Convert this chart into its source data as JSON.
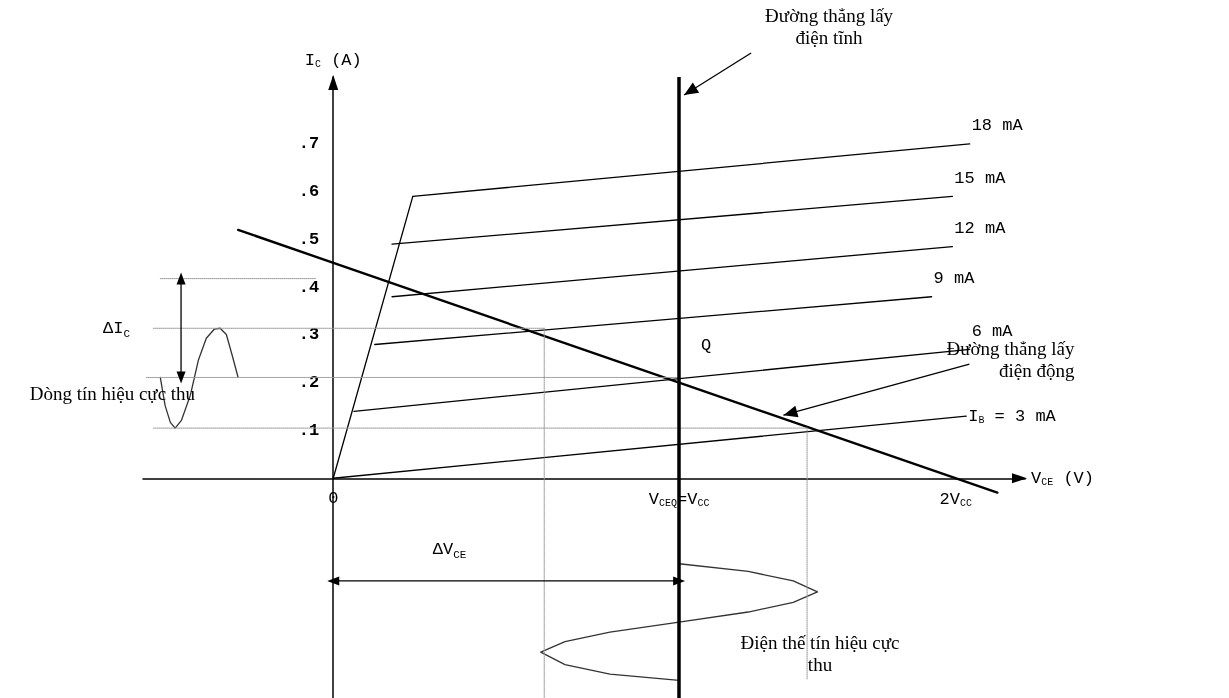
{
  "chart_data": {
    "type": "line",
    "xlabel": "V$_{CE}$ (V)",
    "ylabel": "I$_{C}$ (A)",
    "marker": "none",
    "xlim": [
      -0.55,
      2.0
    ],
    "ylim": [
      -0.46,
      0.84
    ],
    "xticks": [
      0,
      {
        "value": 1,
        "label": "V$_{CEQ}$=V$_{CC}$"
      },
      {
        "value": 1.8,
        "label": "2V$_{CC}$"
      }
    ],
    "yticks": [
      {
        "value": 0.1,
        "label": ".1"
      },
      {
        "value": 0.2,
        "label": ".2"
      },
      {
        "value": 0.3,
        "label": ".3"
      },
      {
        "value": 0.4,
        "label": ".4"
      },
      {
        "value": 0.5,
        "label": ".5"
      },
      {
        "value": 0.6,
        "label": ".6"
      },
      {
        "value": 0.7,
        "label": ".7"
      }
    ],
    "series": [
      {
        "name": "18 mA",
        "color": "#000000",
        "x": [
          0.23,
          1.84
        ],
        "values": [
          0.59,
          0.7
        ]
      },
      {
        "name": "15 mA",
        "color": "#000000",
        "x": [
          0.17,
          1.79
        ],
        "values": [
          0.49,
          0.59
        ]
      },
      {
        "name": "12 mA",
        "color": "#000000",
        "x": [
          0.17,
          1.79
        ],
        "values": [
          0.38,
          0.485
        ]
      },
      {
        "name": "9 mA",
        "color": "#000000",
        "x": [
          0.12,
          1.73
        ],
        "values": [
          0.28,
          0.38
        ]
      },
      {
        "name": "6 mA",
        "color": "#000000",
        "x": [
          0.06,
          1.84
        ],
        "values": [
          0.14,
          0.27
        ]
      },
      {
        "name": "I$_{B}$ = 3 mA",
        "color": "#000000",
        "x": [
          0,
          1.83
        ],
        "values": [
          0,
          0.13
        ]
      },
      {
        "color": "#000000",
        "x": [
          0,
          0.23
        ],
        "values": [
          0,
          0.59
        ]
      },
      {
        "color": "#000000",
        "x": [
          -0.275,
          1,
          1.92
        ],
        "values": [
          0.52,
          0.2,
          -0.03
        ]
      },
      {
        "color": "#333333",
        "x": [
          -0.5,
          -0.486,
          -0.471,
          -0.457,
          -0.439,
          -0.413,
          -0.39,
          -0.367,
          -0.344,
          -0.327,
          -0.309,
          -0.292,
          -0.275
        ],
        "values": [
          0.211,
          0.152,
          0.117,
          0.105,
          0.121,
          0.174,
          0.247,
          0.293,
          0.312,
          0.314,
          0.301,
          0.257,
          0.211
        ]
      },
      {
        "color": "#333333",
        "x": [
          1.0,
          1.2,
          1.33,
          1.4,
          1.33,
          1.2,
          1.0,
          0.8,
          0.67,
          0.6,
          0.67,
          0.8,
          1.0
        ],
        "values": [
          -0.179,
          -0.195,
          -0.215,
          -0.238,
          -0.26,
          -0.28,
          -0.301,
          -0.322,
          -0.342,
          -0.364,
          -0.39,
          -0.41,
          -0.423
        ]
      },
      {
        "color": "#999999",
        "line_style": "dotted",
        "x": [
          -0.5,
          -0.05
        ],
        "values": [
          0.418,
          0.418
        ]
      },
      {
        "color": "#999999",
        "line_style": "dotted",
        "x": [
          -0.52,
          0.61
        ],
        "values": [
          0.314,
          0.314
        ]
      },
      {
        "color": "#999999",
        "line_style": "dotted",
        "x": [
          -0.54,
          1.0
        ],
        "values": [
          0.211,
          0.211
        ]
      },
      {
        "color": "#999999",
        "line_style": "dotted",
        "x": [
          -0.52,
          1.37
        ],
        "values": [
          0.105,
          0.105
        ]
      },
      {
        "color": "#999999",
        "line_style": "dotted",
        "x": [
          0.61,
          0.61
        ],
        "values": [
          0.314,
          -0.46
        ]
      },
      {
        "color": "#999999",
        "line_style": "dotted",
        "x": [
          1.37,
          1.37
        ],
        "values": [
          0.105,
          -0.42
        ]
      },
      {
        "color": "#000000",
        "marker": "triangle",
        "x": [
          -0.44,
          -0.44
        ],
        "values": [
          0.418,
          0.211
        ]
      },
      {
        "color": "#000000",
        "marker": "triangle",
        "x": [
          0,
          1
        ],
        "values": [
          -0.215,
          -0.215
        ]
      }
    ],
    "ref_lines": [
      {
        "axis": "x",
        "value": 1,
        "label": "Đường thẳng lấy điện tĩnh",
        "color": "#000000"
      }
    ],
    "annotations": [
      {
        "text": "Q",
        "x": 1,
        "y": 0.2
      },
      {
        "text": "Đường thẳng lấy điện động",
        "x": 1.29,
        "y": 0.13
      },
      {
        "text": "ΔI$_{C}$",
        "x": -0.44,
        "y": 0.31
      },
      {
        "text": "Dòng tín hiệu cực thu",
        "x": -0.46,
        "y": 0.105
      },
      {
        "text": "ΔV$_{CE}$",
        "x": 0.36,
        "y": -0.215
      },
      "Điện thế tín hiệu cực thu"
    ]
  }
}
